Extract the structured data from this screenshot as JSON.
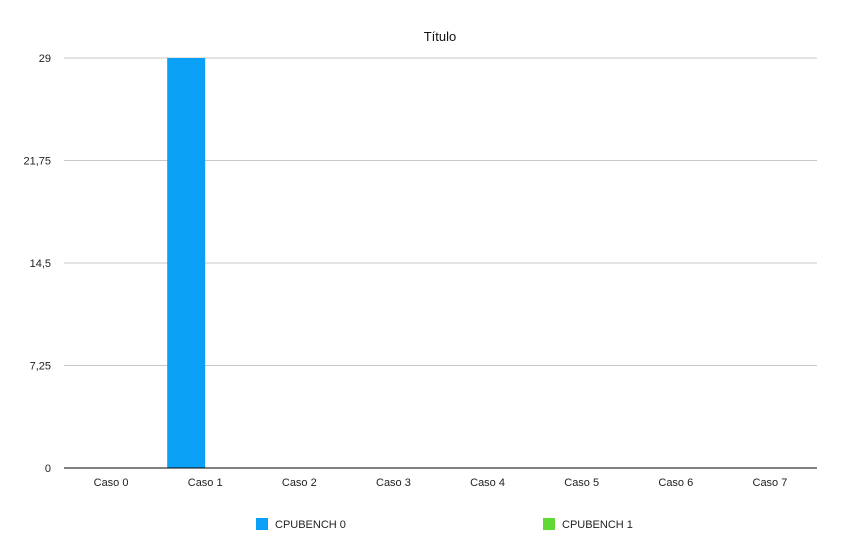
{
  "chart_data": {
    "type": "bar",
    "title": "Título",
    "xlabel": "",
    "ylabel": "",
    "categories": [
      "Caso 0",
      "Caso 1",
      "Caso 2",
      "Caso 3",
      "Caso 4",
      "Caso 5",
      "Caso 6",
      "Caso 7"
    ],
    "series": [
      {
        "name": "CPUBENCH 0",
        "color": "#0aa0f5",
        "values": [
          0,
          29,
          0,
          0,
          0,
          0,
          0,
          0
        ]
      },
      {
        "name": "CPUBENCH 1",
        "color": "#61d836",
        "values": [
          0,
          0,
          0,
          0,
          0,
          0,
          0,
          0
        ]
      }
    ],
    "yticks": [
      0,
      7.25,
      14.5,
      21.75,
      29
    ],
    "ytick_labels": [
      "0",
      "7,25",
      "14,5",
      "21,75",
      "29"
    ],
    "ylim": [
      0,
      29
    ],
    "grid": true,
    "legend_position": "bottom"
  }
}
